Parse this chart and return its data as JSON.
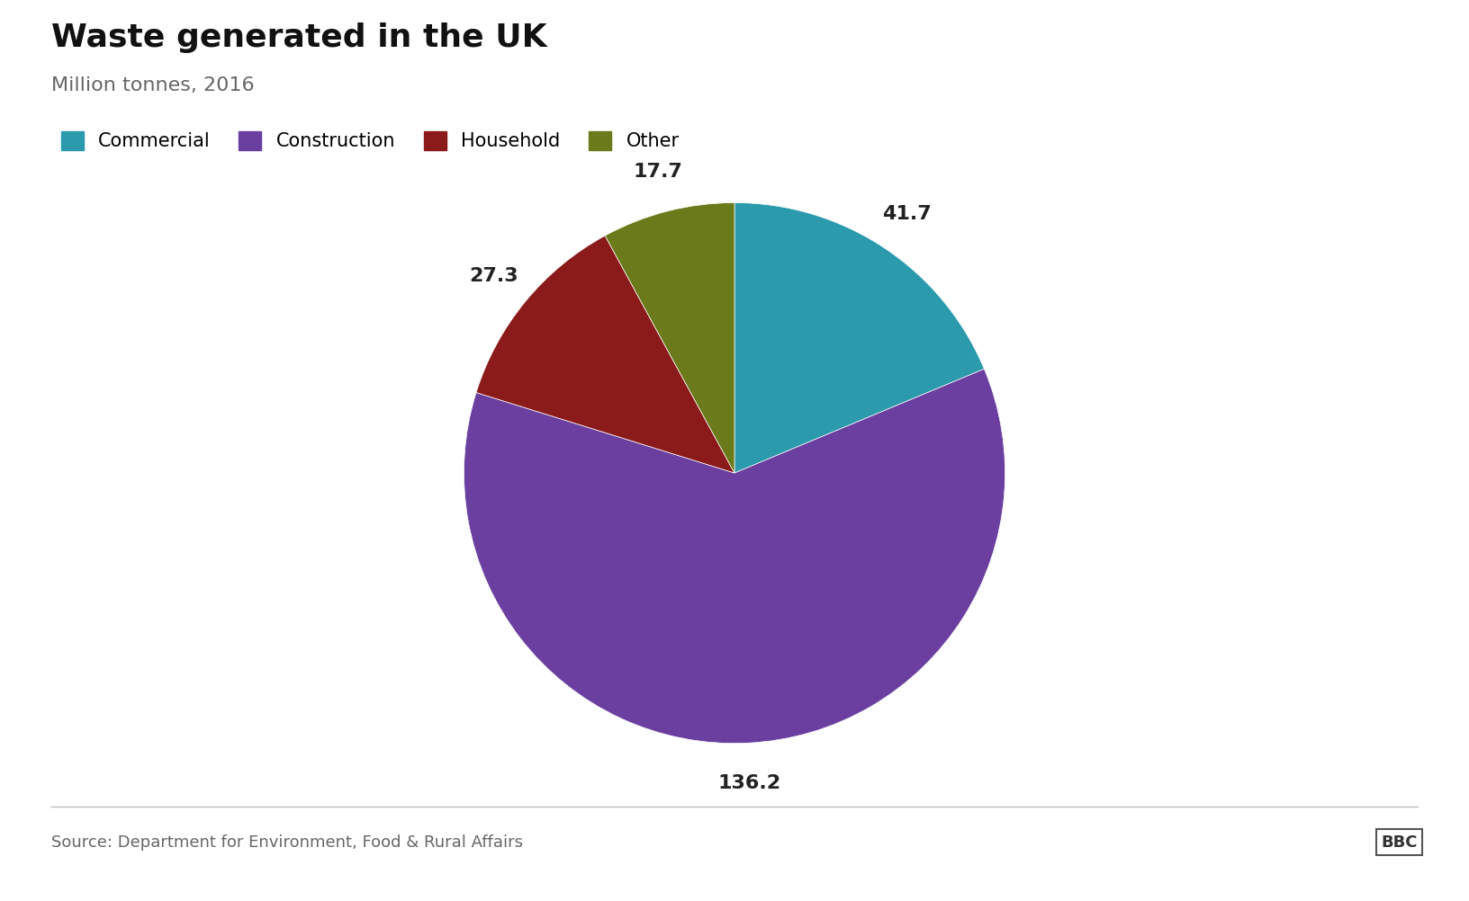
{
  "title": "Waste generated in the UK",
  "subtitle": "Million tonnes, 2016",
  "categories": [
    "Commercial",
    "Construction",
    "Household",
    "Other"
  ],
  "values": [
    41.7,
    136.2,
    27.3,
    17.7
  ],
  "colors": [
    "#2a9aac",
    "#6b3fa0",
    "#8b1a1a",
    "#6b7a1a"
  ],
  "label_values": [
    "41.7",
    "136.2",
    "27.3",
    "17.7"
  ],
  "source_text": "Source: Department for Environment, Food & Rural Affairs",
  "bbc_text": "BBC",
  "background_color": "#ffffff",
  "title_fontsize": 26,
  "subtitle_fontsize": 16,
  "label_fontsize": 16,
  "legend_fontsize": 15,
  "source_fontsize": 13
}
